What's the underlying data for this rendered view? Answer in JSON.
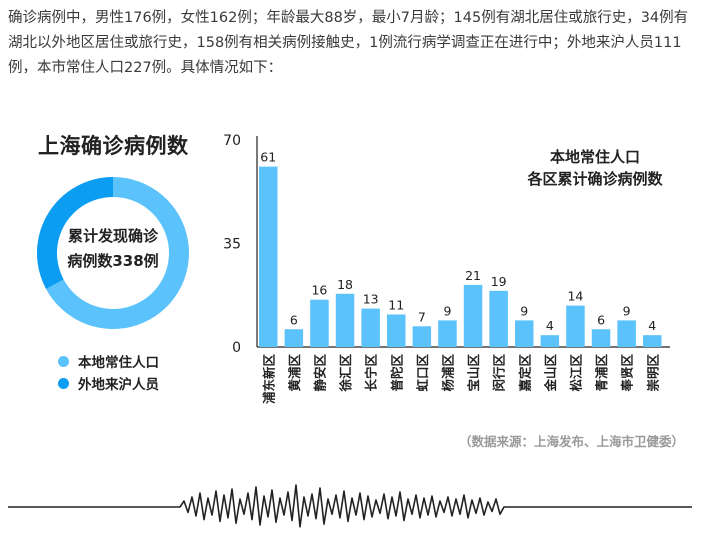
{
  "intro_text": "确诊病例中，男性176例，女性162例；年龄最大88岁，最小7月龄；145例有湖北居住或旅行史，34例有湖北以外地区居住或旅行史，158例有相关病例接触史，1例流行病学调查正在进行中；外地来沪人员111例，本市常住人口227例。具体情况如下：",
  "donut": {
    "title": "上海确诊病例数",
    "center_line1": "累计发现确诊",
    "center_line2": "病例数338例",
    "legend": [
      {
        "label": "本地常住人口",
        "color": "#5bc2fb"
      },
      {
        "label": "外地来沪人员",
        "color": "#0a9df2"
      }
    ],
    "segments": [
      {
        "label": "本地常住人口",
        "value": 227,
        "color": "#5bc2fb"
      },
      {
        "label": "外地来沪人员",
        "value": 111,
        "color": "#0a9df2"
      }
    ]
  },
  "chart_data": {
    "type": "bar",
    "title": "本地常住人口\n各区累计确诊病例数",
    "categories": [
      "浦东新区",
      "黄浦区",
      "静安区",
      "徐汇区",
      "长宁区",
      "普陀区",
      "虹口区",
      "杨浦区",
      "宝山区",
      "闵行区",
      "嘉定区",
      "金山区",
      "松江区",
      "青浦区",
      "奉贤区",
      "崇明区"
    ],
    "values": [
      61,
      6,
      16,
      18,
      13,
      11,
      7,
      9,
      21,
      19,
      9,
      4,
      14,
      6,
      9,
      4
    ],
    "ylim": [
      0,
      70
    ],
    "yticks": [
      0,
      35,
      70
    ],
    "bar_color": "#5bc2fb",
    "grid": false
  },
  "source": "（数据来源：上海发布、上海市卫健委）"
}
